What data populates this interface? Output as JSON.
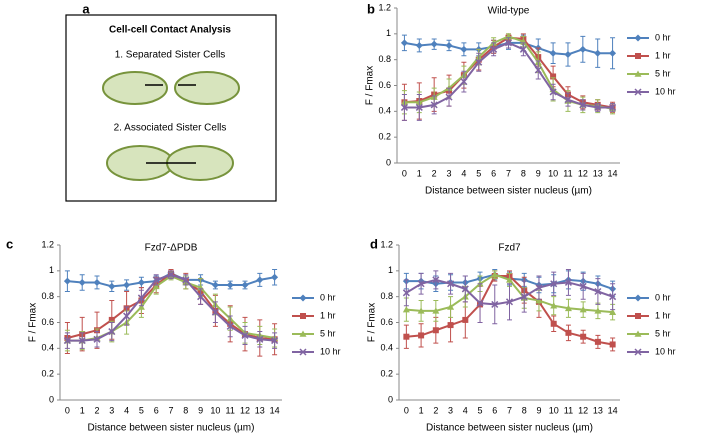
{
  "panel_labels": [
    "a",
    "b",
    "c",
    "d"
  ],
  "diagram": {
    "title": "Cell-cell Contact Analysis",
    "items": [
      "1. Separated Sister Cells",
      "2. Associated Sister Cells"
    ]
  },
  "chart_data": [
    {
      "type": "line",
      "title": "Wild-type",
      "x_label": "Distance between sister nucleus (µm)",
      "y_label": "F / Fmax",
      "categories": [
        0,
        1,
        2,
        3,
        4,
        5,
        6,
        7,
        8,
        9,
        10,
        11,
        12,
        13,
        14
      ],
      "ylim": [
        0,
        1.2
      ],
      "yticks": [
        0,
        0.2,
        0.4,
        0.6,
        0.8,
        1,
        1.2
      ],
      "grid": false,
      "legend": "right",
      "series": [
        {
          "name": "0 hr",
          "color": "#4f81bd",
          "marker": "diamond",
          "values": [
            0.93,
            0.91,
            0.92,
            0.91,
            0.88,
            0.88,
            0.9,
            0.93,
            0.93,
            0.89,
            0.85,
            0.84,
            0.88,
            0.85,
            0.85
          ],
          "errors": [
            0.06,
            0.05,
            0.04,
            0.04,
            0.05,
            0.05,
            0.05,
            0.05,
            0.06,
            0.07,
            0.08,
            0.09,
            0.1,
            0.11,
            0.12
          ]
        },
        {
          "name": "1 hr",
          "color": "#c0504d",
          "marker": "square",
          "values": [
            0.47,
            0.48,
            0.53,
            0.56,
            0.68,
            0.8,
            0.9,
            0.97,
            0.96,
            0.82,
            0.67,
            0.53,
            0.47,
            0.45,
            0.43
          ],
          "errors": [
            0.14,
            0.14,
            0.13,
            0.12,
            0.1,
            0.08,
            0.05,
            0.03,
            0.04,
            0.07,
            0.08,
            0.06,
            0.05,
            0.04,
            0.04
          ]
        },
        {
          "name": "5 hr",
          "color": "#9bbb59",
          "marker": "triangle",
          "values": [
            0.47,
            0.47,
            0.51,
            0.58,
            0.68,
            0.82,
            0.93,
            0.98,
            0.94,
            0.78,
            0.57,
            0.48,
            0.45,
            0.44,
            0.42
          ],
          "errors": [
            0.09,
            0.08,
            0.07,
            0.07,
            0.07,
            0.06,
            0.04,
            0.02,
            0.04,
            0.08,
            0.09,
            0.08,
            0.06,
            0.05,
            0.04
          ]
        },
        {
          "name": "10 hr",
          "color": "#8064a2",
          "marker": "x",
          "values": [
            0.43,
            0.43,
            0.45,
            0.51,
            0.63,
            0.78,
            0.88,
            0.93,
            0.88,
            0.72,
            0.55,
            0.49,
            0.45,
            0.43,
            0.43
          ],
          "errors": [
            0.1,
            0.1,
            0.07,
            0.07,
            0.08,
            0.07,
            0.05,
            0.04,
            0.05,
            0.07,
            0.06,
            0.05,
            0.04,
            0.03,
            0.03
          ]
        }
      ]
    },
    {
      "type": "line",
      "title": "Fzd7-ΔPDB",
      "x_label": "Distance between sister nucleus (µm)",
      "y_label": "F / Fmax",
      "categories": [
        0,
        1,
        2,
        3,
        4,
        5,
        6,
        7,
        8,
        9,
        10,
        11,
        12,
        13,
        14
      ],
      "ylim": [
        0,
        1.2
      ],
      "yticks": [
        0,
        0.2,
        0.4,
        0.6,
        0.8,
        1,
        1.2
      ],
      "grid": false,
      "legend": "right",
      "series": [
        {
          "name": "0 hr",
          "color": "#4f81bd",
          "marker": "diamond",
          "values": [
            0.92,
            0.91,
            0.91,
            0.88,
            0.89,
            0.91,
            0.92,
            0.98,
            0.93,
            0.93,
            0.89,
            0.89,
            0.89,
            0.93,
            0.95
          ],
          "errors": [
            0.08,
            0.06,
            0.05,
            0.04,
            0.04,
            0.04,
            0.04,
            0.03,
            0.03,
            0.04,
            0.03,
            0.03,
            0.03,
            0.05,
            0.06
          ]
        },
        {
          "name": "1 hr",
          "color": "#c0504d",
          "marker": "square",
          "values": [
            0.48,
            0.51,
            0.54,
            0.62,
            0.71,
            0.77,
            0.89,
            0.98,
            0.92,
            0.84,
            0.69,
            0.59,
            0.51,
            0.48,
            0.47
          ],
          "errors": [
            0.12,
            0.13,
            0.14,
            0.15,
            0.13,
            0.1,
            0.06,
            0.03,
            0.06,
            0.1,
            0.12,
            0.14,
            0.13,
            0.14,
            0.12
          ]
        },
        {
          "name": "5 hr",
          "color": "#9bbb59",
          "marker": "triangle",
          "values": [
            0.46,
            0.46,
            0.48,
            0.53,
            0.6,
            0.72,
            0.88,
            0.96,
            0.91,
            0.87,
            0.74,
            0.63,
            0.52,
            0.5,
            0.48
          ],
          "errors": [
            0.08,
            0.07,
            0.07,
            0.08,
            0.09,
            0.08,
            0.06,
            0.03,
            0.05,
            0.07,
            0.08,
            0.09,
            0.08,
            0.07,
            0.07
          ]
        },
        {
          "name": "10 hr",
          "color": "#8064a2",
          "marker": "x",
          "values": [
            0.46,
            0.46,
            0.47,
            0.53,
            0.65,
            0.79,
            0.93,
            0.97,
            0.93,
            0.8,
            0.68,
            0.57,
            0.5,
            0.47,
            0.46
          ],
          "errors": [
            0.06,
            0.06,
            0.06,
            0.07,
            0.07,
            0.06,
            0.04,
            0.03,
            0.04,
            0.06,
            0.08,
            0.08,
            0.07,
            0.06,
            0.06
          ]
        }
      ]
    },
    {
      "type": "line",
      "title": "Fzd7",
      "x_label": "Distance between sister nucleus (µm)",
      "y_label": "F / Fmax",
      "categories": [
        0,
        1,
        2,
        3,
        4,
        5,
        6,
        7,
        8,
        9,
        10,
        11,
        12,
        13,
        14
      ],
      "ylim": [
        0,
        1.2
      ],
      "yticks": [
        0,
        0.2,
        0.4,
        0.6,
        0.8,
        1,
        1.2
      ],
      "grid": false,
      "legend": "right",
      "series": [
        {
          "name": "0 hr",
          "color": "#4f81bd",
          "marker": "diamond",
          "values": [
            0.92,
            0.92,
            0.9,
            0.91,
            0.91,
            0.94,
            0.97,
            0.94,
            0.93,
            0.89,
            0.9,
            0.93,
            0.92,
            0.9,
            0.86
          ],
          "errors": [
            0.06,
            0.06,
            0.06,
            0.06,
            0.05,
            0.05,
            0.04,
            0.05,
            0.05,
            0.06,
            0.07,
            0.07,
            0.07,
            0.06,
            0.06
          ]
        },
        {
          "name": "1 hr",
          "color": "#c0504d",
          "marker": "square",
          "values": [
            0.49,
            0.5,
            0.54,
            0.58,
            0.62,
            0.74,
            0.96,
            0.96,
            0.85,
            0.76,
            0.59,
            0.52,
            0.49,
            0.45,
            0.43
          ],
          "errors": [
            0.09,
            0.09,
            0.1,
            0.13,
            0.14,
            0.14,
            0.04,
            0.04,
            0.1,
            0.12,
            0.06,
            0.06,
            0.05,
            0.05,
            0.05
          ]
        },
        {
          "name": "5 hr",
          "color": "#9bbb59",
          "marker": "triangle",
          "values": [
            0.7,
            0.69,
            0.69,
            0.72,
            0.8,
            0.9,
            0.97,
            0.93,
            0.79,
            0.77,
            0.73,
            0.71,
            0.7,
            0.69,
            0.68
          ],
          "errors": [
            0.09,
            0.08,
            0.08,
            0.08,
            0.08,
            0.06,
            0.03,
            0.05,
            0.08,
            0.08,
            0.07,
            0.07,
            0.06,
            0.06,
            0.06
          ]
        },
        {
          "name": "10 hr",
          "color": "#8064a2",
          "marker": "x",
          "values": [
            0.83,
            0.9,
            0.93,
            0.9,
            0.86,
            0.75,
            0.74,
            0.76,
            0.8,
            0.87,
            0.9,
            0.91,
            0.88,
            0.84,
            0.8
          ],
          "errors": [
            0.1,
            0.08,
            0.07,
            0.08,
            0.1,
            0.15,
            0.15,
            0.14,
            0.12,
            0.09,
            0.09,
            0.1,
            0.1,
            0.1,
            0.1
          ]
        }
      ]
    }
  ]
}
